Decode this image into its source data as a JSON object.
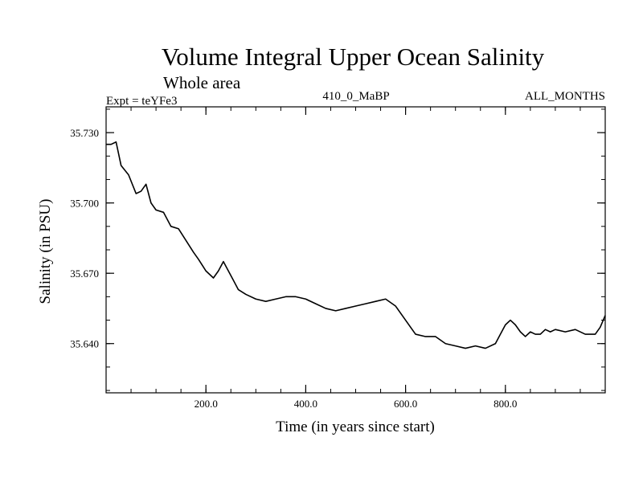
{
  "chart_data": {
    "type": "line",
    "title": "Volume Integral Upper Ocean Salinity",
    "subtitle": "Whole area",
    "experiment": "Expt = teYFe3",
    "run": "410_0_MaBP",
    "months": "ALL_MONTHS",
    "xlabel": "Time (in years since start)",
    "ylabel": "Salinity (in PSU)",
    "xlim": [
      0,
      1000
    ],
    "ylim": [
      35.619,
      35.741
    ],
    "xticks": [
      {
        "value": 200,
        "label": "200.0"
      },
      {
        "value": 400,
        "label": "400.0"
      },
      {
        "value": 600,
        "label": "600.0"
      },
      {
        "value": 800,
        "label": "800.0"
      }
    ],
    "yticks": [
      {
        "value": 35.64,
        "label": "35.640"
      },
      {
        "value": 35.67,
        "label": "35.670"
      },
      {
        "value": 35.7,
        "label": "35.700"
      },
      {
        "value": 35.73,
        "label": "35.730"
      }
    ],
    "xminor_step": 50,
    "yminor_step": 0.01,
    "grid": false,
    "series": [
      {
        "name": "salinity",
        "color": "#000000",
        "x": [
          0,
          10,
          20,
          30,
          45,
          60,
          70,
          80,
          90,
          100,
          115,
          130,
          145,
          160,
          175,
          185,
          200,
          215,
          225,
          235,
          245,
          255,
          265,
          280,
          300,
          320,
          340,
          360,
          380,
          400,
          420,
          440,
          460,
          480,
          500,
          520,
          540,
          560,
          580,
          600,
          620,
          640,
          660,
          680,
          700,
          720,
          740,
          760,
          780,
          790,
          800,
          810,
          820,
          830,
          840,
          850,
          860,
          870,
          880,
          890,
          900,
          920,
          940,
          960,
          980,
          990,
          1000
        ],
        "y": [
          35.725,
          35.725,
          35.726,
          35.716,
          35.712,
          35.704,
          35.705,
          35.708,
          35.7,
          35.697,
          35.696,
          35.69,
          35.689,
          35.684,
          35.679,
          35.676,
          35.671,
          35.668,
          35.671,
          35.675,
          35.671,
          35.667,
          35.663,
          35.661,
          35.659,
          35.658,
          35.659,
          35.66,
          35.66,
          35.659,
          35.657,
          35.655,
          35.654,
          35.655,
          35.656,
          35.657,
          35.658,
          35.659,
          35.656,
          35.65,
          35.644,
          35.643,
          35.643,
          35.64,
          35.639,
          35.638,
          35.639,
          35.638,
          35.64,
          35.644,
          35.648,
          35.65,
          35.648,
          35.645,
          35.643,
          35.645,
          35.644,
          35.644,
          35.646,
          35.645,
          35.646,
          35.645,
          35.646,
          35.644,
          35.644,
          35.647,
          35.652
        ]
      }
    ]
  }
}
